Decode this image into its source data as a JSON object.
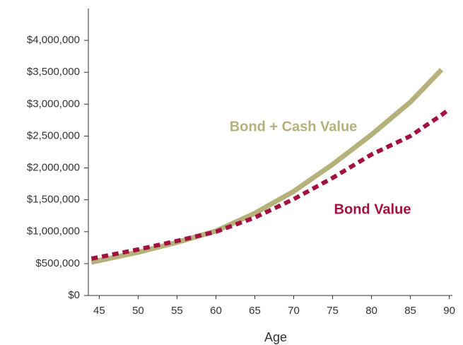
{
  "chart_data": {
    "type": "line",
    "x_label": "Age",
    "x": [
      44,
      50,
      55,
      60,
      65,
      70,
      75,
      80,
      85,
      89,
      90
    ],
    "series": [
      {
        "name": "Bond + Cash Value",
        "color": "#b5b17a",
        "dashed": false,
        "values": [
          522000,
          678000,
          833000,
          1011000,
          1289000,
          1633000,
          2056000,
          2522000,
          3033000,
          3540000,
          null
        ]
      },
      {
        "name": "Bond Value",
        "color": "#a3123f",
        "dashed": true,
        "values": [
          578000,
          722000,
          856000,
          1000000,
          1222000,
          1511000,
          1844000,
          2211000,
          2500000,
          2830000,
          2922000
        ]
      }
    ],
    "xlim": [
      43.6,
      90.4
    ],
    "xticks": [
      45,
      50,
      55,
      60,
      65,
      70,
      75,
      80,
      85,
      90
    ],
    "ylim": [
      0,
      4500000
    ],
    "yticks": [
      {
        "value": 0,
        "label": "$0"
      },
      {
        "value": 500000,
        "label": "$500,000"
      },
      {
        "value": 1000000,
        "label": "$1,000,000"
      },
      {
        "value": 1500000,
        "label": "$1,500,000"
      },
      {
        "value": 2000000,
        "label": "$2,000,000"
      },
      {
        "value": 2500000,
        "label": "$2,500,000"
      },
      {
        "value": 3000000,
        "label": "$3,000,000"
      },
      {
        "value": 3500000,
        "label": "$3,500,000"
      },
      {
        "value": 4000000,
        "label": "$4,000,000"
      }
    ],
    "grid": false
  }
}
